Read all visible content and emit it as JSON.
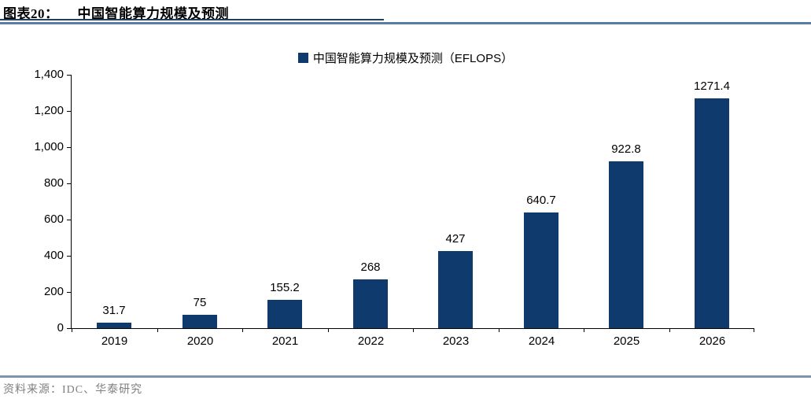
{
  "header": {
    "figure_label": "图表20：",
    "title": "中国智能算力规模及预测"
  },
  "chart_data": {
    "type": "bar",
    "title": "中国智能算力规模及预测",
    "legend": "中国智能算力规模及预测（EFLOPS）",
    "legend_position": "top-center",
    "categories": [
      "2019",
      "2020",
      "2021",
      "2022",
      "2023",
      "2024",
      "2025",
      "2026"
    ],
    "values": [
      31.7,
      75,
      155.2,
      268,
      427,
      640.7,
      922.8,
      1271.4
    ],
    "value_labels": [
      "31.7",
      "75",
      "155.2",
      "268",
      "427",
      "640.7",
      "922.8",
      "1271.4"
    ],
    "unit": "EFLOPS",
    "ylim": [
      0,
      1400
    ],
    "ytick_step": 200,
    "ytick_labels": [
      "0",
      "200",
      "400",
      "600",
      "800",
      "1,000",
      "1,200",
      "1,400"
    ],
    "grid": false,
    "bar_color": "#0e3a6d"
  },
  "footer": {
    "source": "资料来源：IDC、华泰研究"
  },
  "colors": {
    "bar": "#0e3a6d",
    "title_rule": "#24405f",
    "top_rule": "#5a7ca8",
    "bottom_rule": "#7e94ad",
    "axis": "#000000",
    "source_text": "#7f7f7f"
  }
}
